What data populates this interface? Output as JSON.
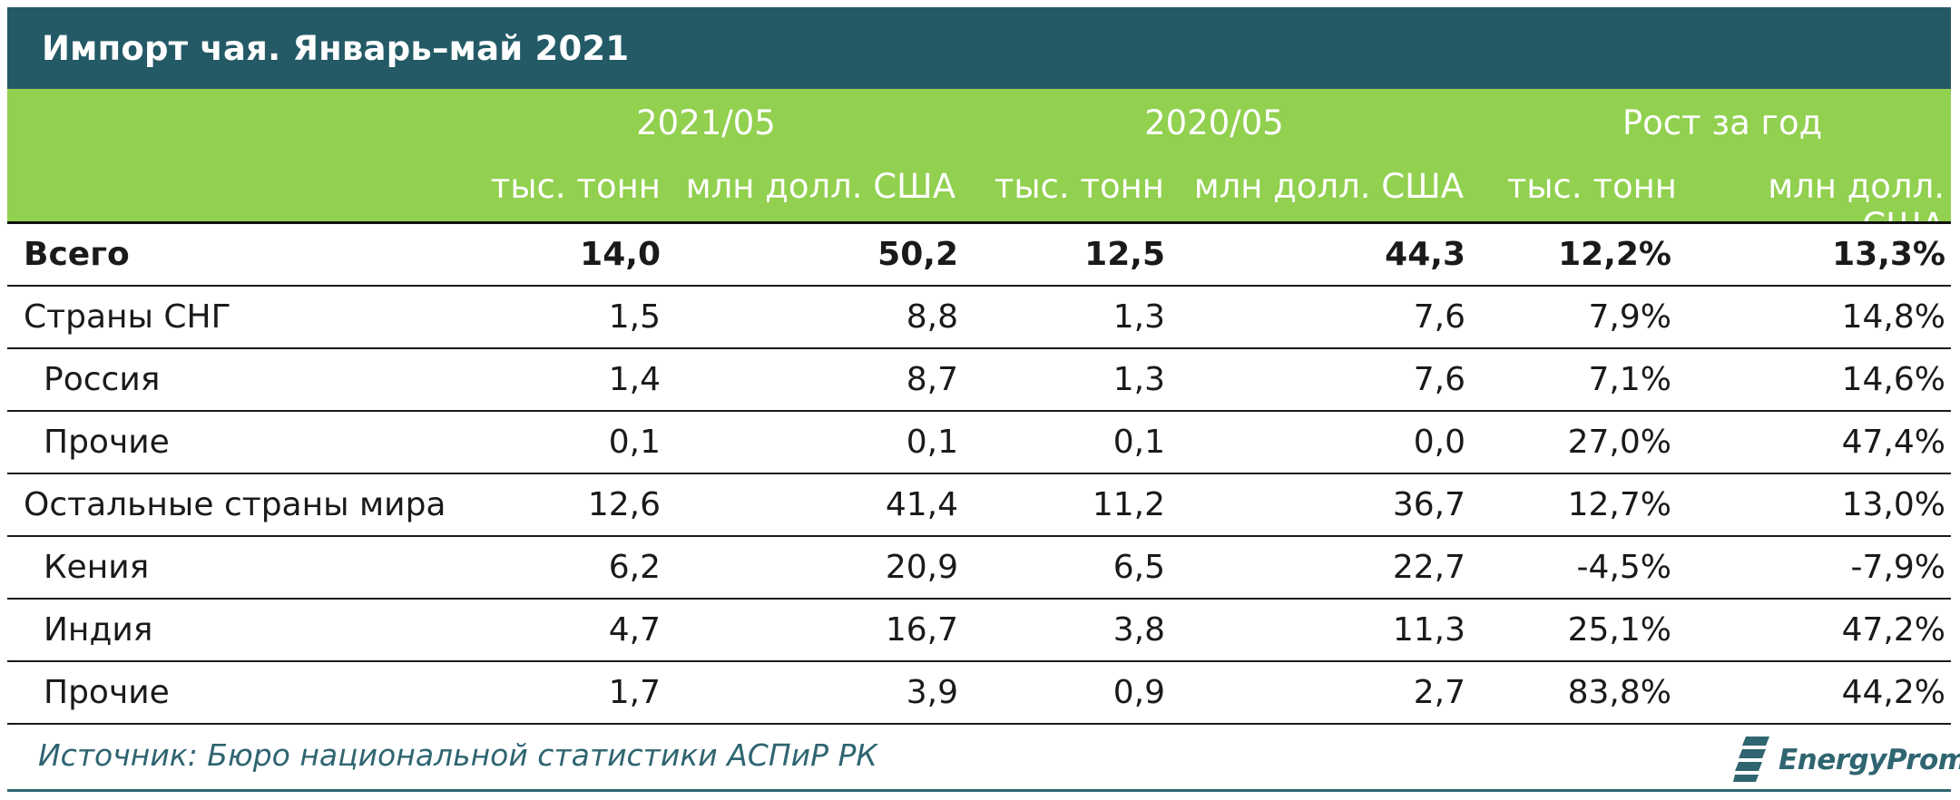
{
  "title": "Импорт чая. Январь–май 2021",
  "header": {
    "groups": [
      "2021/05",
      "2020/05",
      "Рост за год"
    ],
    "units": [
      "тыс. тонн",
      "млн долл. США",
      "тыс. тонн",
      "млн долл. США",
      "тыс. тонн",
      "млн долл. США"
    ]
  },
  "rows": [
    {
      "name": "Всего",
      "v": [
        "14,0",
        "50,2",
        "12,5",
        "44,3",
        "12,2%",
        "13,3%"
      ]
    },
    {
      "name": "Страны СНГ",
      "v": [
        "1,5",
        "8,8",
        "1,3",
        "7,6",
        "7,9%",
        "14,8%"
      ]
    },
    {
      "name": "Россия",
      "v": [
        "1,4",
        "8,7",
        "1,3",
        "7,6",
        "7,1%",
        "14,6%"
      ]
    },
    {
      "name": "Прочие",
      "v": [
        "0,1",
        "0,1",
        "0,1",
        "0,0",
        "27,0%",
        "47,4%"
      ]
    },
    {
      "name": "Остальные страны мира",
      "v": [
        "12,6",
        "41,4",
        "11,2",
        "36,7",
        "12,7%",
        "13,0%"
      ]
    },
    {
      "name": "Кения",
      "v": [
        "6,2",
        "20,9",
        "6,5",
        "22,7",
        "-4,5%",
        "-7,9%"
      ]
    },
    {
      "name": "Индия",
      "v": [
        "4,7",
        "16,7",
        "3,8",
        "11,3",
        "25,1%",
        "47,2%"
      ]
    },
    {
      "name": "Прочие",
      "v": [
        "1,7",
        "3,9",
        "0,9",
        "2,7",
        "83,8%",
        "44,2%"
      ]
    }
  ],
  "source": "Источник: Бюро национальной статистики АСПиР РК",
  "logo": {
    "text": "EnergyProm",
    "icon": "energyprom-logo-icon"
  },
  "colors": {
    "title_bg": "#235a66",
    "header_bg": "#92d050",
    "accent": "#2f6571"
  }
}
